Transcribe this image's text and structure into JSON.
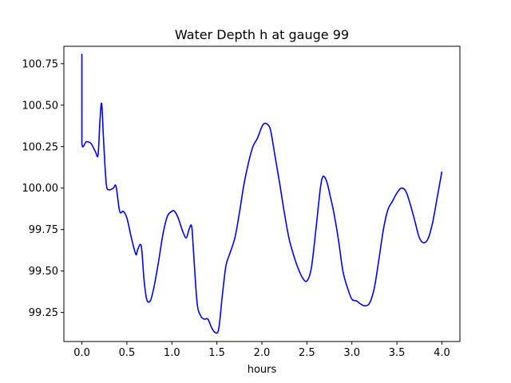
{
  "chart_data": {
    "type": "line",
    "title": "Water Depth h at gauge 99",
    "xlabel": "hours",
    "ylabel": "",
    "xlim": [
      -0.2,
      4.2
    ],
    "ylim": [
      99.075,
      100.855
    ],
    "xticks": [
      0.0,
      0.5,
      1.0,
      1.5,
      2.0,
      2.5,
      3.0,
      3.5,
      4.0
    ],
    "xtick_labels": [
      "0.0",
      "0.5",
      "1.0",
      "1.5",
      "2.0",
      "2.5",
      "3.0",
      "3.5",
      "4.0"
    ],
    "yticks": [
      99.25,
      99.5,
      99.75,
      100.0,
      100.25,
      100.5,
      100.75
    ],
    "ytick_labels": [
      "99.25",
      "99.50",
      "99.75",
      "100.00",
      "100.25",
      "100.50",
      "100.75"
    ],
    "grid": false,
    "legend": "none",
    "series": [
      {
        "color": "#0000ff",
        "x": [
          0.0,
          0.0,
          0.0,
          0.05,
          0.1,
          0.15,
          0.18,
          0.2,
          0.22,
          0.24,
          0.27,
          0.3,
          0.35,
          0.38,
          0.42,
          0.46,
          0.5,
          0.55,
          0.6,
          0.62,
          0.66,
          0.69,
          0.72,
          0.76,
          0.8,
          0.85,
          0.9,
          0.95,
          1.0,
          1.03,
          1.07,
          1.12,
          1.16,
          1.19,
          1.22,
          1.24,
          1.28,
          1.32,
          1.36,
          1.4,
          1.44,
          1.48,
          1.52,
          1.56,
          1.6,
          1.64,
          1.7,
          1.75,
          1.8,
          1.85,
          1.9,
          1.95,
          2.0,
          2.03,
          2.07,
          2.1,
          2.15,
          2.2,
          2.25,
          2.3,
          2.35,
          2.4,
          2.45,
          2.5,
          2.55,
          2.6,
          2.65,
          2.68,
          2.72,
          2.76,
          2.8,
          2.85,
          2.9,
          2.95,
          3.0,
          3.05,
          3.1,
          3.15,
          3.2,
          3.25,
          3.3,
          3.35,
          3.4,
          3.45,
          3.5,
          3.55,
          3.6,
          3.65,
          3.7,
          3.75,
          3.8,
          3.85,
          3.9,
          3.95,
          4.0
        ],
        "y": [
          100.81,
          100.6,
          100.27,
          100.28,
          100.27,
          100.22,
          100.2,
          100.4,
          100.51,
          100.3,
          100.03,
          99.99,
          100.0,
          100.01,
          99.86,
          99.86,
          99.82,
          99.7,
          99.6,
          99.63,
          99.65,
          99.45,
          99.33,
          99.32,
          99.4,
          99.55,
          99.72,
          99.83,
          99.86,
          99.86,
          99.82,
          99.74,
          99.7,
          99.75,
          99.77,
          99.62,
          99.31,
          99.23,
          99.21,
          99.21,
          99.16,
          99.13,
          99.15,
          99.35,
          99.53,
          99.6,
          99.7,
          99.85,
          100.02,
          100.15,
          100.25,
          100.3,
          100.37,
          100.39,
          100.38,
          100.34,
          100.18,
          100.02,
          99.85,
          99.7,
          99.6,
          99.52,
          99.46,
          99.44,
          99.52,
          99.75,
          100.0,
          100.07,
          100.04,
          99.95,
          99.85,
          99.69,
          99.5,
          99.4,
          99.33,
          99.32,
          99.3,
          99.29,
          99.31,
          99.4,
          99.57,
          99.75,
          99.87,
          99.92,
          99.97,
          100.0,
          99.98,
          99.9,
          99.8,
          99.7,
          99.67,
          99.7,
          99.8,
          99.95,
          100.1
        ]
      }
    ]
  }
}
